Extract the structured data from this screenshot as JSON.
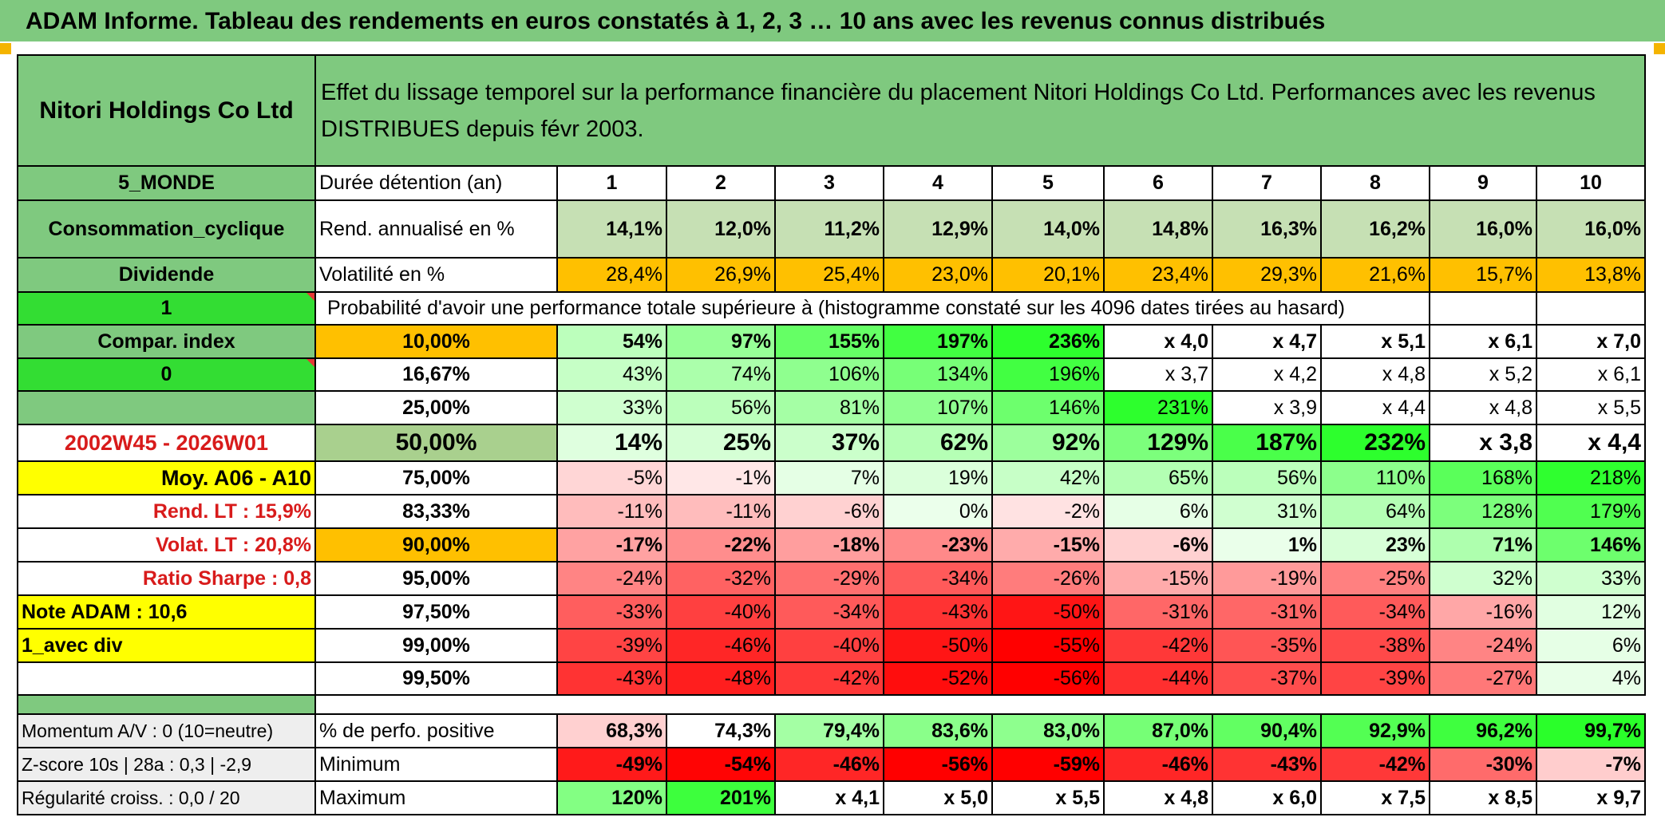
{
  "banner": "ADAM Informe. Tableau des rendements en euros constatés à 1, 2, 3 … 10 ans avec les revenus connus distribués",
  "header": {
    "name": "Nitori Holdings Co Ltd",
    "description": "Effet du lissage temporel sur la performance financière du placement Nitori Holdings Co Ltd. Performances avec les revenus DISTRIBUES depuis févr 2003."
  },
  "left": {
    "zone": "5_MONDE",
    "sector": "Consommation_cyclique",
    "dividend": "Dividende",
    "one": "1",
    "compar": "Compar. index",
    "zero": "0",
    "period": "2002W45 - 2026W01",
    "moy": "Moy. A06 - A10",
    "rend_lt": "Rend. LT :    15,9%",
    "volat_lt": "Volat. LT :    20,8%",
    "sharpe": "Ratio Sharpe :    0,8",
    "note": "Note ADAM : 10,6",
    "avec_div": "1_avec div",
    "momentum": "Momentum A/V : 0 (10=neutre)",
    "zscore": "Z-score 10s | 28a : 0,3 | -2,9",
    "regularite": "Régularité croiss. : 0,0 / 20"
  },
  "labels": {
    "duree": "Durée détention (an)",
    "rend": "Rend. annualisé en %",
    "volat": "Volatilité en %",
    "proba": "Probabilité d'avoir une performance totale supérieure à (histogramme constaté sur les 4096 dates tirées au hasard)",
    "pct_pos": "% de perfo. positive",
    "minimum": "Minimum",
    "maximum": "Maximum"
  },
  "years": [
    "1",
    "2",
    "3",
    "4",
    "5",
    "6",
    "7",
    "8",
    "9",
    "10"
  ],
  "rend": [
    "14,1%",
    "12,0%",
    "11,2%",
    "12,9%",
    "14,0%",
    "14,8%",
    "16,3%",
    "16,2%",
    "16,0%",
    "16,0%"
  ],
  "volat": [
    "28,4%",
    "26,9%",
    "25,4%",
    "23,0%",
    "20,1%",
    "23,4%",
    "29,3%",
    "21,6%",
    "15,7%",
    "13,8%"
  ],
  "probs": [
    {
      "label": "10,00%",
      "values": [
        "54%",
        "97%",
        "155%",
        "197%",
        "236%",
        "x 4,0",
        "x 4,7",
        "x 5,1",
        "x 6,1",
        "x 7,0"
      ]
    },
    {
      "label": "16,67%",
      "values": [
        "43%",
        "74%",
        "106%",
        "134%",
        "196%",
        "x 3,7",
        "x 4,2",
        "x 4,8",
        "x 5,2",
        "x 6,1"
      ]
    },
    {
      "label": "25,00%",
      "values": [
        "33%",
        "56%",
        "81%",
        "107%",
        "146%",
        "231%",
        "x 3,9",
        "x 4,4",
        "x 4,8",
        "x 5,5"
      ]
    },
    {
      "label": "50,00%",
      "values": [
        "14%",
        "25%",
        "37%",
        "62%",
        "92%",
        "129%",
        "187%",
        "232%",
        "x 3,8",
        "x 4,4"
      ]
    },
    {
      "label": "75,00%",
      "values": [
        "-5%",
        "-1%",
        "7%",
        "19%",
        "42%",
        "65%",
        "56%",
        "110%",
        "168%",
        "218%"
      ]
    },
    {
      "label": "83,33%",
      "values": [
        "-11%",
        "-11%",
        "-6%",
        "0%",
        "-2%",
        "6%",
        "31%",
        "64%",
        "128%",
        "179%"
      ]
    },
    {
      "label": "90,00%",
      "values": [
        "-17%",
        "-22%",
        "-18%",
        "-23%",
        "-15%",
        "-6%",
        "1%",
        "23%",
        "71%",
        "146%"
      ]
    },
    {
      "label": "95,00%",
      "values": [
        "-24%",
        "-32%",
        "-29%",
        "-34%",
        "-26%",
        "-15%",
        "-19%",
        "-25%",
        "32%",
        "33%"
      ]
    },
    {
      "label": "97,50%",
      "values": [
        "-33%",
        "-40%",
        "-34%",
        "-43%",
        "-50%",
        "-31%",
        "-31%",
        "-34%",
        "-16%",
        "12%"
      ]
    },
    {
      "label": "99,00%",
      "values": [
        "-39%",
        "-46%",
        "-40%",
        "-50%",
        "-55%",
        "-42%",
        "-35%",
        "-38%",
        "-24%",
        "6%"
      ]
    },
    {
      "label": "99,50%",
      "values": [
        "-43%",
        "-48%",
        "-42%",
        "-52%",
        "-56%",
        "-44%",
        "-37%",
        "-39%",
        "-27%",
        "4%"
      ]
    }
  ],
  "pct_pos": [
    "68,3%",
    "74,3%",
    "79,4%",
    "83,6%",
    "83,0%",
    "87,0%",
    "90,4%",
    "92,9%",
    "96,2%",
    "99,7%"
  ],
  "minimum": [
    "-49%",
    "-54%",
    "-46%",
    "-56%",
    "-59%",
    "-46%",
    "-43%",
    "-42%",
    "-30%",
    "-7%"
  ],
  "maximum": [
    "120%",
    "201%",
    "x 4,1",
    "x 5,0",
    "x 5,5",
    "x 4,8",
    "x 6,0",
    "x 7,5",
    "x 8,5",
    "x 9,7"
  ],
  "colors": {
    "header_green": "#7fc97f",
    "bright_green": "#33dd33",
    "orange": "#ffc000",
    "yellow": "#ffff00",
    "red": "#ff0000",
    "light_green": "#c6e0b4",
    "dark_red_text": "#d81b1b"
  }
}
